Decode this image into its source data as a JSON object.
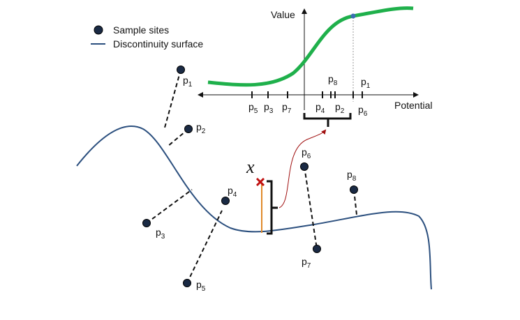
{
  "legend": [
    {
      "label": "Sample sites"
    },
    {
      "label": "Discontinuity surface"
    }
  ],
  "inset": {
    "y_axis_label": "Value",
    "x_axis_label": "Potential",
    "ticks": [
      {
        "name": "p",
        "sub": "5"
      },
      {
        "name": "p",
        "sub": "3"
      },
      {
        "name": "p",
        "sub": "7"
      },
      {
        "name": "p",
        "sub": "4"
      },
      {
        "name": "p",
        "sub": "8"
      },
      {
        "name": "p",
        "sub": "2"
      },
      {
        "name": "p",
        "sub": "6"
      },
      {
        "name": "p",
        "sub": "1"
      }
    ]
  },
  "query_label": "x",
  "points": [
    {
      "name": "p",
      "sub": "1"
    },
    {
      "name": "p",
      "sub": "2"
    },
    {
      "name": "p",
      "sub": "3"
    },
    {
      "name": "p",
      "sub": "4"
    },
    {
      "name": "p",
      "sub": "5"
    },
    {
      "name": "p",
      "sub": "6"
    },
    {
      "name": "p",
      "sub": "7"
    },
    {
      "name": "p",
      "sub": "8"
    }
  ]
}
